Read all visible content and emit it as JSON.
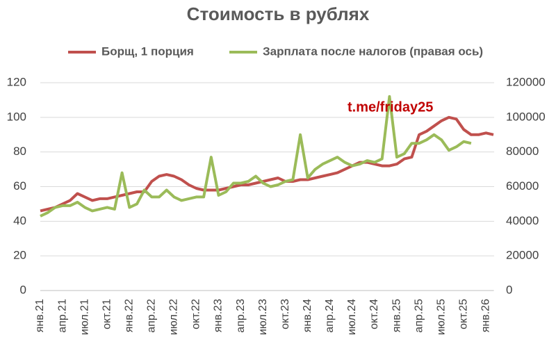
{
  "chart_data": {
    "type": "line",
    "title": "Стоимость в рублях",
    "annotation": "t.me/friday25",
    "categories": [
      "янв.21",
      null,
      null,
      "апр.21",
      null,
      null,
      "июл.21",
      null,
      null,
      "окт.21",
      null,
      null,
      "янв.22",
      null,
      null,
      "апр.22",
      null,
      null,
      "июл.22",
      null,
      null,
      "окт.22",
      null,
      null,
      "янв.23",
      null,
      null,
      "апр.23",
      null,
      null,
      "июл.23",
      null,
      null,
      "окт.23",
      null,
      null,
      "янв.24",
      null,
      null,
      "апр.24",
      null,
      null,
      "июл.24",
      null,
      null,
      "окт.24",
      null,
      null,
      "янв.25",
      null,
      null,
      "апр.25",
      null,
      null,
      "июл.25",
      null,
      null,
      "окт.25",
      null,
      null,
      "янв.26",
      null
    ],
    "series": [
      {
        "name": "Борщ, 1 порция",
        "color": "#c0504d",
        "values": [
          46,
          47,
          48,
          50,
          52,
          56,
          54,
          52,
          53,
          53,
          54,
          55,
          56,
          57,
          57,
          63,
          66,
          67,
          66,
          64,
          61,
          59,
          58,
          58,
          58,
          59,
          60,
          61,
          61,
          62,
          63,
          64,
          65,
          63,
          63,
          64,
          64,
          65,
          66,
          67,
          68,
          70,
          72,
          74,
          74,
          73,
          72,
          72,
          73,
          76,
          77,
          90,
          92,
          95,
          98,
          100,
          99,
          93,
          90,
          90,
          91,
          90
        ]
      },
      {
        "name": "Зарплата после налогов (правая ось)",
        "color": "#9bbb59",
        "axis": "y2",
        "values": [
          43000,
          45000,
          48000,
          49000,
          49000,
          51000,
          48000,
          46000,
          47000,
          48000,
          47000,
          68000,
          48000,
          50000,
          58000,
          54000,
          54000,
          58000,
          54000,
          52000,
          53000,
          54000,
          54000,
          77000,
          55000,
          57000,
          62000,
          62000,
          63000,
          66000,
          62000,
          60000,
          61000,
          63000,
          64000,
          90000,
          65000,
          70000,
          73000,
          75000,
          77000,
          74000,
          72000,
          73000,
          75000,
          74000,
          76000,
          112000,
          77000,
          79000,
          85000,
          85000,
          87000,
          90000,
          87000,
          81000,
          83000,
          86000,
          85000,
          null,
          null,
          null
        ]
      }
    ],
    "ylim": [
      0,
      120
    ],
    "yticks": [
      0,
      20,
      40,
      60,
      80,
      100,
      120
    ],
    "y2lim": [
      0,
      120000
    ],
    "y2ticks": [
      0,
      20000,
      40000,
      60000,
      80000,
      100000,
      120000
    ],
    "grid": true,
    "legend": "top"
  }
}
